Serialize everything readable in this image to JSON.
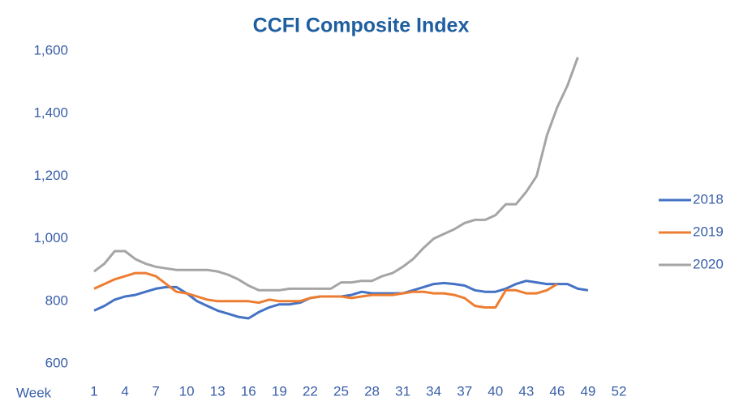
{
  "chart_data": {
    "type": "line",
    "title": "CCFI Composite Index",
    "x_label": "Week",
    "x": [
      1,
      2,
      3,
      4,
      5,
      6,
      7,
      8,
      9,
      10,
      11,
      12,
      13,
      14,
      15,
      16,
      17,
      18,
      19,
      20,
      21,
      22,
      23,
      24,
      25,
      26,
      27,
      28,
      29,
      30,
      31,
      32,
      33,
      34,
      35,
      36,
      37,
      38,
      39,
      40,
      41,
      42,
      43,
      44,
      45,
      46,
      47,
      48,
      49,
      50,
      51,
      52
    ],
    "xlim": [
      1,
      52
    ],
    "xticks": [
      1,
      4,
      7,
      10,
      13,
      16,
      19,
      22,
      25,
      28,
      31,
      34,
      37,
      40,
      43,
      46,
      49,
      52
    ],
    "ylim": [
      600,
      1600
    ],
    "yticks": [
      600,
      800,
      {
        "value": 1000,
        "label": "1,000"
      },
      {
        "value": 1200,
        "label": "1,200"
      },
      {
        "value": 1400,
        "label": "1,400"
      },
      {
        "value": 1600,
        "label": "1,600"
      }
    ],
    "series": [
      {
        "name": "2018",
        "color": "#4472c4",
        "values": [
          770,
          785,
          805,
          815,
          820,
          830,
          840,
          845,
          845,
          825,
          800,
          785,
          770,
          760,
          750,
          745,
          765,
          780,
          790,
          790,
          795,
          810,
          815,
          815,
          815,
          820,
          830,
          825,
          825,
          825,
          825,
          835,
          845,
          855,
          858,
          855,
          850,
          835,
          830,
          830,
          840,
          855,
          865,
          860,
          855,
          855,
          855,
          840,
          835,
          null,
          null,
          null
        ]
      },
      {
        "name": "2019",
        "color": "#ed7d31",
        "values": [
          840,
          855,
          870,
          880,
          890,
          890,
          880,
          855,
          830,
          825,
          815,
          805,
          800,
          800,
          800,
          800,
          795,
          805,
          800,
          800,
          800,
          810,
          815,
          815,
          815,
          810,
          815,
          820,
          820,
          820,
          825,
          830,
          830,
          825,
          825,
          820,
          810,
          785,
          780,
          780,
          835,
          835,
          825,
          825,
          835,
          855,
          null,
          null,
          null,
          null,
          null,
          null
        ]
      },
      {
        "name": "2020",
        "color": "#a5a5a5",
        "values": [
          895,
          920,
          960,
          960,
          935,
          920,
          910,
          905,
          900,
          900,
          900,
          900,
          895,
          885,
          870,
          850,
          835,
          835,
          835,
          840,
          840,
          840,
          840,
          840,
          860,
          860,
          865,
          865,
          880,
          890,
          910,
          935,
          970,
          1000,
          1015,
          1030,
          1050,
          1060,
          1060,
          1075,
          1110,
          1110,
          1150,
          1200,
          1330,
          1420,
          1490,
          1580,
          null,
          null,
          null,
          null
        ]
      }
    ]
  }
}
